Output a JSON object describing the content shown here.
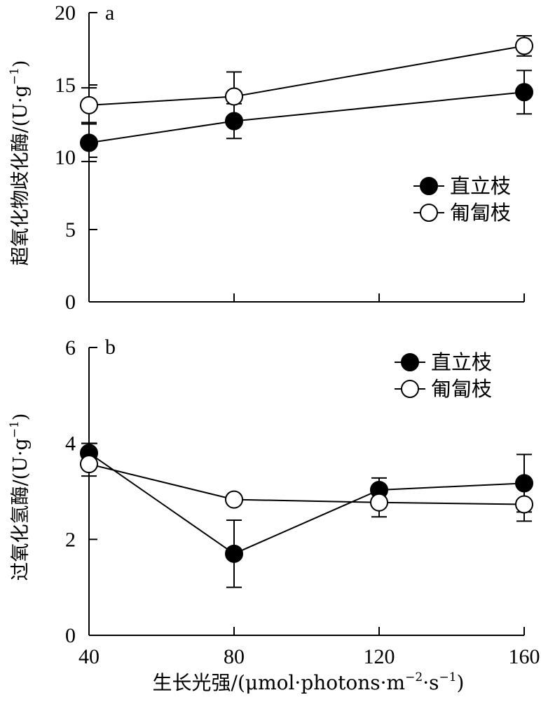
{
  "chart_data": [
    {
      "type": "line",
      "panel_label": "a",
      "ylabel": "超氧化物歧化酶/(U·g",
      "ylabel_sup": "−1",
      "ylabel_close": ")",
      "ylim": [
        0,
        20
      ],
      "yticks": [
        0,
        5,
        10,
        15,
        20
      ],
      "ytick_labels": [
        "0",
        "5",
        "10",
        "15",
        "20"
      ],
      "xlim": [
        40,
        160
      ],
      "xticks": [
        40,
        80,
        120,
        160
      ],
      "legend_position": "right",
      "series": [
        {
          "name": "直立枝",
          "marker": "filled-circle",
          "x": [
            40,
            80,
            160
          ],
          "y": [
            11.0,
            12.5,
            14.5
          ],
          "err": [
            1.3,
            1.2,
            1.5
          ]
        },
        {
          "name": "匍匐枝",
          "marker": "open-circle",
          "x": [
            40,
            80,
            160
          ],
          "y": [
            13.6,
            14.2,
            17.7
          ],
          "err": [
            1.2,
            1.7,
            0.7
          ]
        }
      ]
    },
    {
      "type": "line",
      "panel_label": "b",
      "ylabel": "过氧化氢酶/(U·g",
      "ylabel_sup": "−1",
      "ylabel_close": ")",
      "ylim": [
        0,
        6
      ],
      "yticks": [
        0,
        2,
        4,
        6
      ],
      "ytick_labels": [
        "0",
        "2",
        "4",
        "6"
      ],
      "xlim": [
        40,
        160
      ],
      "xticks": [
        40,
        80,
        120,
        160
      ],
      "xtick_labels": [
        "40",
        "80",
        "120",
        "160"
      ],
      "xlabel": "生长光强/(μmol·photons·m",
      "xlabel_sup1": "−2",
      "xlabel_mid": "·s",
      "xlabel_sup2": "−1",
      "xlabel_close": ")",
      "legend_position": "top-right",
      "series": [
        {
          "name": "直立枝",
          "marker": "filled-circle",
          "x": [
            40,
            80,
            120,
            160
          ],
          "y": [
            3.8,
            1.7,
            3.03,
            3.17
          ],
          "err": [
            0.2,
            0.7,
            0.25,
            0.6
          ]
        },
        {
          "name": "匍匐枝",
          "marker": "open-circle",
          "x": [
            40,
            80,
            120,
            160
          ],
          "y": [
            3.57,
            2.83,
            2.77,
            2.73
          ],
          "err": [
            0.25,
            0,
            0.3,
            0.35
          ]
        }
      ]
    }
  ]
}
